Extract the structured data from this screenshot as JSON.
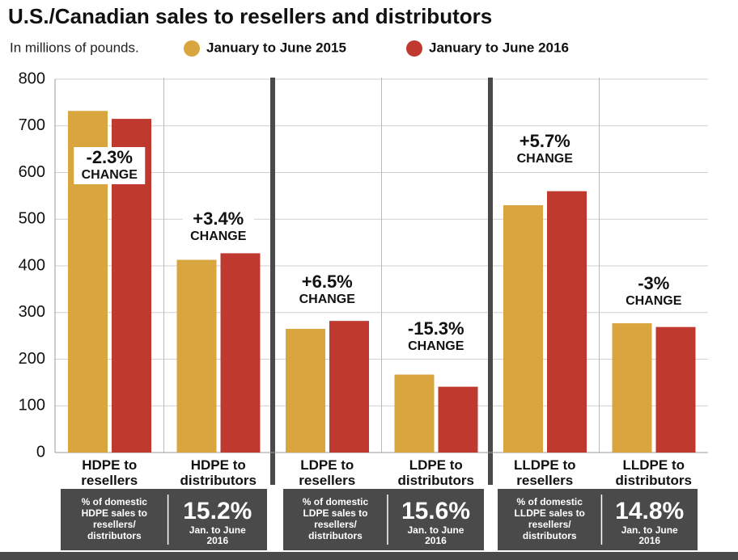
{
  "chart_data": {
    "type": "bar",
    "title": "U.S./Canadian sales to resellers and distributors",
    "subtitle": "In millions of pounds.",
    "categories": [
      "HDPE to resellers",
      "HDPE to distributors",
      "LDPE to resellers",
      "LDPE to distributors",
      "LLDPE to resellers",
      "LLDPE to distributors"
    ],
    "series": [
      {
        "name": "January to June 2015",
        "color": "#d9a53f",
        "values": [
          732,
          413,
          265,
          167,
          530,
          277
        ]
      },
      {
        "name": "January to June 2016",
        "color": "#c0392f",
        "values": [
          715,
          427,
          282,
          141,
          560,
          269
        ]
      }
    ],
    "ylim": [
      0,
      800
    ],
    "yticks": [
      0,
      100,
      200,
      300,
      400,
      500,
      600,
      700,
      800
    ],
    "grid": true,
    "changes": [
      {
        "pct": "-2.3%",
        "word": "CHANGE"
      },
      {
        "pct": "+3.4%",
        "word": "CHANGE"
      },
      {
        "pct": "+6.5%",
        "word": "CHANGE"
      },
      {
        "pct": "-15.3%",
        "word": "CHANGE"
      },
      {
        "pct": "+5.7%",
        "word": "CHANGE"
      },
      {
        "pct": "-3%",
        "word": "CHANGE"
      }
    ],
    "share_boxes": [
      {
        "caption": [
          "% of domestic",
          "HDPE sales to",
          "resellers/",
          "distributors"
        ],
        "share": "15.2%",
        "period": [
          "Jan. to June",
          "2016"
        ]
      },
      {
        "caption": [
          "% of domestic",
          "LDPE sales to",
          "resellers/",
          "distributors"
        ],
        "share": "15.6%",
        "period": [
          "Jan. to June",
          "2016"
        ]
      },
      {
        "caption": [
          "% of domestic",
          "LLDPE sales to",
          "resellers/",
          "distributors"
        ],
        "share": "14.8%",
        "period": [
          "Jan. to June",
          "2016"
        ]
      }
    ]
  }
}
